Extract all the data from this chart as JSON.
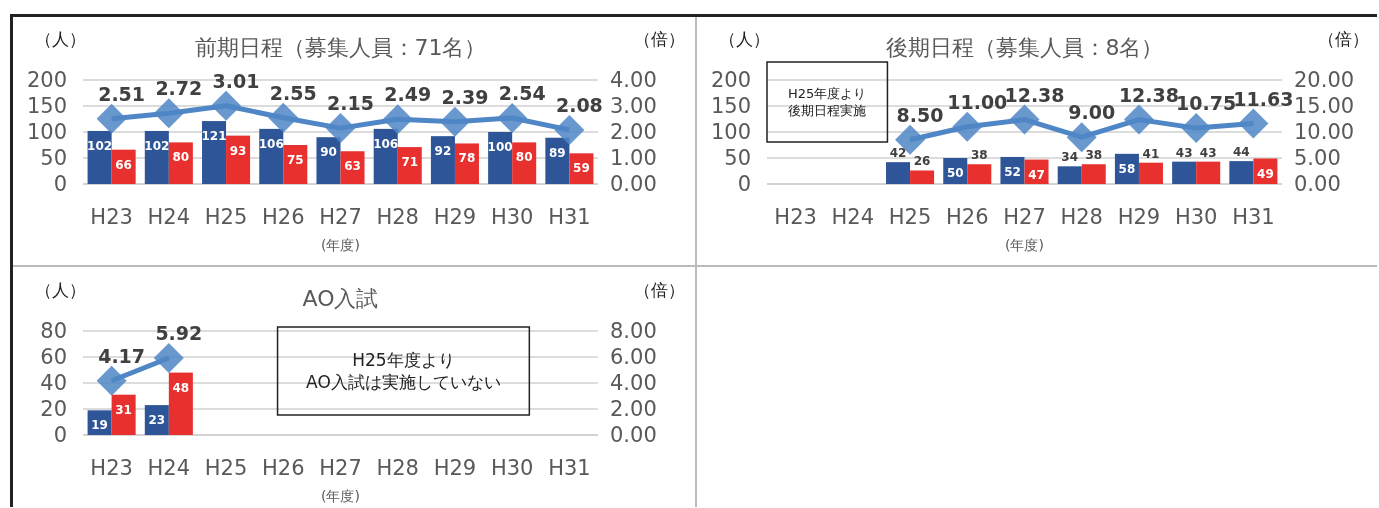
{
  "chart_data": [
    {
      "type": "bar",
      "title": "前期日程（募集人員：71名）",
      "xlabel": "(年度)",
      "ylabel": "（人）",
      "y2label": "（倍）",
      "categories": [
        "H23",
        "H24",
        "H25",
        "H26",
        "H27",
        "H28",
        "H29",
        "H30",
        "H31"
      ],
      "series": [
        {
          "color": "#2e5597",
          "values": [
            102,
            102,
            121,
            106,
            90,
            106,
            92,
            100,
            89
          ]
        },
        {
          "color": "#e8312f",
          "values": [
            66,
            80,
            93,
            75,
            63,
            71,
            78,
            80,
            59
          ]
        },
        {
          "type": "line",
          "axis": "y2",
          "color": "#4f86c6",
          "marker": "diamond",
          "values": [
            2.51,
            2.72,
            3.01,
            2.55,
            2.15,
            2.49,
            2.39,
            2.54,
            2.08
          ],
          "value_labels": [
            "2.51",
            "2.72",
            "3.01",
            "2.55",
            "2.15",
            "2.49",
            "2.39",
            "2.54",
            "2.08"
          ]
        }
      ],
      "ylim": [
        0,
        200
      ],
      "yticks": [
        0,
        50,
        100,
        150,
        200
      ],
      "y2lim": [
        0,
        4
      ],
      "y2ticks": [
        {
          "value": 0,
          "label": "0.00"
        },
        {
          "value": 1,
          "label": "1.00"
        },
        {
          "value": 2,
          "label": "2.00"
        },
        {
          "value": 3,
          "label": "3.00"
        },
        {
          "value": 4,
          "label": "4.00"
        }
      ],
      "grid": "y",
      "data_labels": true
    },
    {
      "type": "bar",
      "title": "後期日程（募集人員：8名）",
      "xlabel": "(年度)",
      "ylabel": "（人）",
      "y2label": "（倍）",
      "annotations": [
        "H25年度より",
        "後期日程実施"
      ],
      "categories": [
        "H23",
        "H24",
        "H25",
        "H26",
        "H27",
        "H28",
        "H29",
        "H30",
        "H31"
      ],
      "series": [
        {
          "color": "#2e5597",
          "values": [
            null,
            null,
            42,
            50,
            52,
            34,
            58,
            43,
            44
          ]
        },
        {
          "color": "#e8312f",
          "values": [
            null,
            null,
            26,
            38,
            47,
            38,
            41,
            43,
            49
          ]
        },
        {
          "type": "line",
          "axis": "y2",
          "color": "#4f86c6",
          "marker": "diamond",
          "values": [
            null,
            null,
            8.5,
            11.0,
            12.38,
            9.0,
            12.38,
            10.75,
            11.63
          ],
          "value_labels": [
            null,
            null,
            "8.50",
            "11.00",
            "12.38",
            "9.00",
            "12.38",
            "10.75",
            "11.63"
          ]
        }
      ],
      "ylim": [
        0,
        200
      ],
      "yticks": [
        0,
        50,
        100,
        150,
        200
      ],
      "y2lim": [
        0,
        20
      ],
      "y2ticks": [
        {
          "value": 0,
          "label": "0.00"
        },
        {
          "value": 5,
          "label": "5.00"
        },
        {
          "value": 10,
          "label": "10.00"
        },
        {
          "value": 15,
          "label": "15.00"
        },
        {
          "value": 20,
          "label": "20.00"
        }
      ],
      "grid": "y",
      "data_labels": true
    },
    {
      "type": "bar",
      "title": "AO入試",
      "xlabel": "(年度)",
      "ylabel": "（人）",
      "y2label": "（倍）",
      "annotations": [
        "H25年度より",
        "AO入試は実施していない"
      ],
      "categories": [
        "H23",
        "H24",
        "H25",
        "H26",
        "H27",
        "H28",
        "H29",
        "H30",
        "H31"
      ],
      "series": [
        {
          "color": "#2e5597",
          "values": [
            19,
            23,
            null,
            null,
            null,
            null,
            null,
            null,
            null
          ]
        },
        {
          "color": "#e8312f",
          "values": [
            31,
            48,
            null,
            null,
            null,
            null,
            null,
            null,
            null
          ]
        },
        {
          "type": "line",
          "axis": "y2",
          "color": "#4f86c6",
          "marker": "diamond",
          "values": [
            4.17,
            5.92,
            null,
            null,
            null,
            null,
            null,
            null,
            null
          ],
          "value_labels": [
            "4.17",
            "5.92",
            null,
            null,
            null,
            null,
            null,
            null,
            null
          ]
        }
      ],
      "ylim": [
        0,
        80
      ],
      "yticks": [
        0,
        20,
        40,
        60,
        80
      ],
      "y2lim": [
        0,
        8
      ],
      "y2ticks": [
        {
          "value": 0,
          "label": "0.00"
        },
        {
          "value": 2,
          "label": "2.00"
        },
        {
          "value": 4,
          "label": "4.00"
        },
        {
          "value": 6,
          "label": "6.00"
        },
        {
          "value": 8,
          "label": "8.00"
        }
      ],
      "grid": "y",
      "data_labels": true
    }
  ]
}
